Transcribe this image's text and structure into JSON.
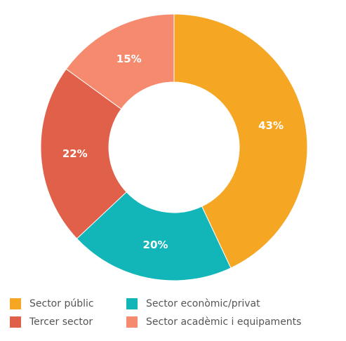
{
  "chart_data": {
    "type": "pie",
    "style": "donut",
    "categories": [
      "Sector públic",
      "Sector econòmic/privat",
      "Tercer sector",
      "Sector acadèmic i equipaments"
    ],
    "values": [
      43,
      20,
      22,
      15
    ],
    "labels": [
      "43%",
      "20%",
      "22%",
      "15%"
    ],
    "colors": [
      "#F5A623",
      "#12B5B8",
      "#E0604A",
      "#F58A6E"
    ],
    "legend_position": "bottom",
    "legend": [
      {
        "label": "Sector públic",
        "color": "#F5A623"
      },
      {
        "label": "Sector econòmic/privat",
        "color": "#12B5B8"
      },
      {
        "label": "Tercer sector",
        "color": "#E0604A"
      },
      {
        "label": "Sector acadèmic i equipaments",
        "color": "#F58A6E"
      }
    ]
  }
}
